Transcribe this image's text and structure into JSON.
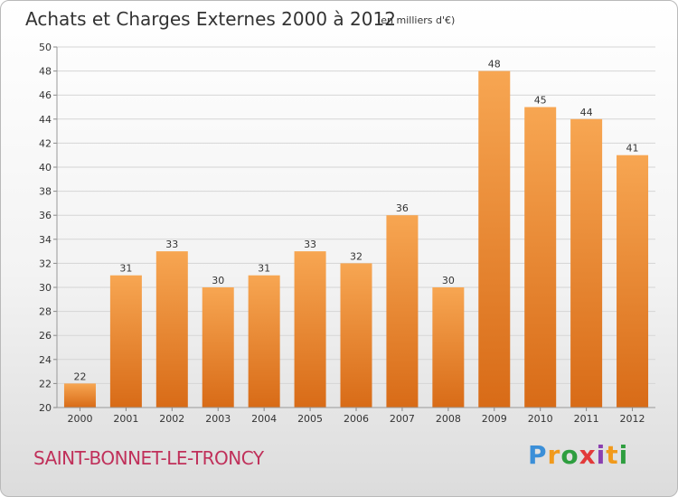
{
  "chart_data": {
    "type": "bar",
    "title": "Achats et Charges Externes 2000 à 2012",
    "subtitle": "(en milliers d'€)",
    "categories": [
      "2000",
      "2001",
      "2002",
      "2003",
      "2004",
      "2005",
      "2006",
      "2007",
      "2008",
      "2009",
      "2010",
      "2011",
      "2012"
    ],
    "values": [
      22,
      31,
      33,
      30,
      31,
      33,
      32,
      36,
      30,
      48,
      45,
      44,
      41
    ],
    "ylim": [
      20,
      50
    ],
    "yticks": [
      20,
      22,
      24,
      26,
      28,
      30,
      32,
      34,
      36,
      38,
      40,
      42,
      44,
      46,
      48,
      50
    ],
    "grid": true,
    "bar_color_top": "#f7a652",
    "bar_color_bottom": "#d86b17"
  },
  "footer": {
    "city": "SAINT-BONNET-LE-TRONCY",
    "brand": "Proxiti"
  }
}
